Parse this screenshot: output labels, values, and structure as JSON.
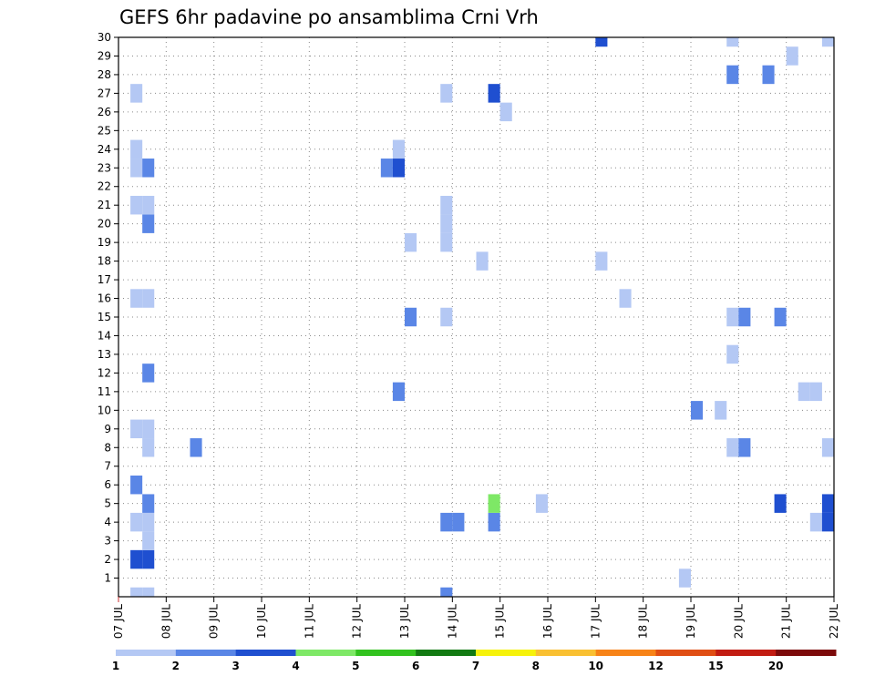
{
  "chart_data": {
    "type": "heatmap",
    "title": "GEFS 6hr padavine po ansamblima Crni Vrh",
    "xlabel": "",
    "ylabel": "",
    "x_tick_labels": [
      "07 JUL",
      "08 JUL",
      "09 JUL",
      "10 JUL",
      "11 JUL",
      "12 JUL",
      "13 JUL",
      "14 JUL",
      "15 JUL",
      "16 JUL",
      "17 JUL",
      "18 JUL",
      "19 JUL",
      "20 JUL",
      "21 JUL",
      "22 JUL"
    ],
    "y_tick_labels": [
      "1",
      "2",
      "3",
      "4",
      "5",
      "6",
      "7",
      "8",
      "9",
      "10",
      "11",
      "12",
      "13",
      "14",
      "15",
      "16",
      "17",
      "18",
      "19",
      "20",
      "21",
      "22",
      "23",
      "24",
      "25",
      "26",
      "27",
      "28",
      "29",
      "30"
    ],
    "xlim": [
      0,
      15
    ],
    "ylim": [
      0,
      30
    ],
    "grid": true,
    "cell_width_days": 0.25,
    "colorbar": {
      "labels": [
        "1",
        "2",
        "3",
        "4",
        "5",
        "6",
        "7",
        "8",
        "10",
        "12",
        "15",
        "20"
      ],
      "colors": [
        "#b4c8f4",
        "#5a86e6",
        "#1f4fd0",
        "#7ee866",
        "#32c21e",
        "#127a12",
        "#f6f20a",
        "#f9c032",
        "#f78318",
        "#e04e14",
        "#c21c12",
        "#7c0a0a"
      ]
    },
    "cells": [
      {
        "x": 0.25,
        "y": 0,
        "c": 1
      },
      {
        "x": 0.5,
        "y": 0,
        "c": 1
      },
      {
        "x": 0.25,
        "y": 2,
        "c": 3
      },
      {
        "x": 0.5,
        "y": 2,
        "c": 3
      },
      {
        "x": 0.5,
        "y": 3,
        "c": 1
      },
      {
        "x": 0.25,
        "y": 4,
        "c": 1
      },
      {
        "x": 0.5,
        "y": 4,
        "c": 1
      },
      {
        "x": 0.5,
        "y": 5,
        "c": 2
      },
      {
        "x": 0.25,
        "y": 6,
        "c": 2
      },
      {
        "x": 0.5,
        "y": 8,
        "c": 1
      },
      {
        "x": 0.25,
        "y": 9,
        "c": 1
      },
      {
        "x": 0.5,
        "y": 9,
        "c": 1
      },
      {
        "x": 0.5,
        "y": 12,
        "c": 2
      },
      {
        "x": 0.25,
        "y": 16,
        "c": 1
      },
      {
        "x": 0.5,
        "y": 16,
        "c": 1
      },
      {
        "x": 0.5,
        "y": 20,
        "c": 2
      },
      {
        "x": 0.25,
        "y": 21,
        "c": 1
      },
      {
        "x": 0.5,
        "y": 21,
        "c": 1
      },
      {
        "x": 0.25,
        "y": 23,
        "c": 1
      },
      {
        "x": 0.5,
        "y": 23,
        "c": 2
      },
      {
        "x": 0.25,
        "y": 24,
        "c": 1
      },
      {
        "x": 0.25,
        "y": 27,
        "c": 1
      },
      {
        "x": 1.5,
        "y": 8,
        "c": 2
      },
      {
        "x": 5.5,
        "y": 23,
        "c": 2
      },
      {
        "x": 5.75,
        "y": 23,
        "c": 3
      },
      {
        "x": 5.75,
        "y": 24,
        "c": 1
      },
      {
        "x": 5.75,
        "y": 11,
        "c": 2
      },
      {
        "x": 6.0,
        "y": 15,
        "c": 2
      },
      {
        "x": 6.0,
        "y": 19,
        "c": 1
      },
      {
        "x": 6.75,
        "y": 0,
        "c": 2
      },
      {
        "x": 6.75,
        "y": 4,
        "c": 2
      },
      {
        "x": 7.0,
        "y": 4,
        "c": 2
      },
      {
        "x": 6.75,
        "y": 15,
        "c": 1
      },
      {
        "x": 6.75,
        "y": 19,
        "c": 1
      },
      {
        "x": 6.75,
        "y": 20,
        "c": 1
      },
      {
        "x": 6.75,
        "y": 21,
        "c": 1
      },
      {
        "x": 6.75,
        "y": 27,
        "c": 1
      },
      {
        "x": 7.5,
        "y": 18,
        "c": 1
      },
      {
        "x": 7.75,
        "y": 4,
        "c": 2
      },
      {
        "x": 7.75,
        "y": 5,
        "c": 4
      },
      {
        "x": 7.75,
        "y": 27,
        "c": 3
      },
      {
        "x": 8.0,
        "y": 26,
        "c": 1
      },
      {
        "x": 8.75,
        "y": 5,
        "c": 1
      },
      {
        "x": 10.0,
        "y": 18,
        "c": 1
      },
      {
        "x": 10.0,
        "y": 30,
        "c": 3
      },
      {
        "x": 10.5,
        "y": 16,
        "c": 1
      },
      {
        "x": 11.75,
        "y": 1,
        "c": 1
      },
      {
        "x": 12.0,
        "y": 10,
        "c": 2
      },
      {
        "x": 12.5,
        "y": 10,
        "c": 1
      },
      {
        "x": 12.75,
        "y": 8,
        "c": 1
      },
      {
        "x": 13.0,
        "y": 8,
        "c": 2
      },
      {
        "x": 12.75,
        "y": 13,
        "c": 1
      },
      {
        "x": 12.75,
        "y": 15,
        "c": 1
      },
      {
        "x": 13.0,
        "y": 15,
        "c": 2
      },
      {
        "x": 12.75,
        "y": 28,
        "c": 2
      },
      {
        "x": 12.75,
        "y": 30,
        "c": 1
      },
      {
        "x": 13.5,
        "y": 28,
        "c": 2
      },
      {
        "x": 13.75,
        "y": 5,
        "c": 3
      },
      {
        "x": 13.75,
        "y": 15,
        "c": 2
      },
      {
        "x": 14.0,
        "y": 29,
        "c": 1
      },
      {
        "x": 14.25,
        "y": 11,
        "c": 1
      },
      {
        "x": 14.5,
        "y": 11,
        "c": 1
      },
      {
        "x": 14.5,
        "y": 4,
        "c": 1
      },
      {
        "x": 14.75,
        "y": 4,
        "c": 3
      },
      {
        "x": 14.75,
        "y": 5,
        "c": 3
      },
      {
        "x": 14.75,
        "y": 8,
        "c": 1
      },
      {
        "x": 14.75,
        "y": 30,
        "c": 1
      }
    ]
  }
}
